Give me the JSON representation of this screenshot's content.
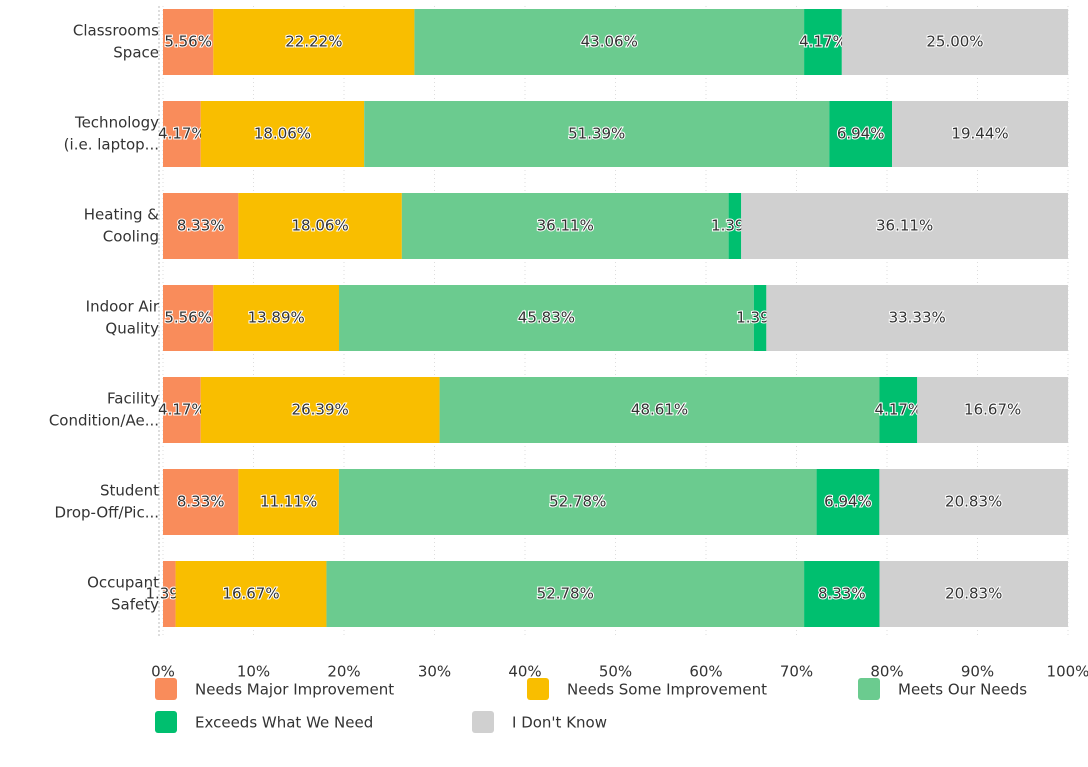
{
  "chart_data": {
    "type": "stacked_bar_horizontal",
    "categories": [
      [
        "Classrooms",
        "Space"
      ],
      [
        "Technology",
        "(i.e. laptop..."
      ],
      [
        "Heating &",
        "Cooling"
      ],
      [
        "Indoor Air",
        "Quality"
      ],
      [
        "Facility",
        "Condition/Ae..."
      ],
      [
        "Student",
        "Drop-Off/Pic..."
      ],
      [
        "Occupant",
        "Safety"
      ]
    ],
    "series": [
      {
        "name": "Needs Major Improvement",
        "color": "#f98c5b",
        "values": [
          5.56,
          4.17,
          8.33,
          5.56,
          4.17,
          8.33,
          1.39
        ],
        "value_labels": [
          "5.56%",
          "4.17%",
          "8.33%",
          "5.56%",
          "4.17%",
          "8.33%",
          "1.39%"
        ]
      },
      {
        "name": "Needs Some Improvement",
        "color": "#f9be00",
        "values": [
          22.22,
          18.06,
          18.06,
          13.89,
          26.39,
          11.11,
          16.67
        ],
        "value_labels": [
          "22.22%",
          "18.06%",
          "18.06%",
          "13.89%",
          "26.39%",
          "11.11%",
          "16.67%"
        ]
      },
      {
        "name": "Meets Our Needs",
        "color": "#6bcb8f",
        "values": [
          43.06,
          51.39,
          36.11,
          45.83,
          48.61,
          52.78,
          52.78
        ],
        "value_labels": [
          "43.06%",
          "51.39%",
          "36.11%",
          "45.83%",
          "48.61%",
          "52.78%",
          "52.78%"
        ]
      },
      {
        "name": "Exceeds What We Need",
        "color": "#00bf6f",
        "values": [
          4.17,
          6.94,
          1.39,
          1.39,
          4.17,
          6.94,
          8.33
        ],
        "value_labels": [
          "4.17%",
          "6.94%",
          "1.39%",
          "1.39%",
          "4.17%",
          "6.94%",
          "8.33%"
        ]
      },
      {
        "name": "I Don't Know",
        "color": "#d0d0d0",
        "values": [
          25.0,
          19.44,
          36.11,
          33.33,
          16.67,
          20.83,
          20.83
        ],
        "value_labels": [
          "25.00%",
          "19.44%",
          "36.11%",
          "33.33%",
          "16.67%",
          "20.83%",
          "20.83%"
        ]
      }
    ],
    "xlim": [
      0,
      100
    ],
    "xticks": [
      {
        "value": 0,
        "label": "0%"
      },
      {
        "value": 10,
        "label": "10%"
      },
      {
        "value": 20,
        "label": "20%"
      },
      {
        "value": 30,
        "label": "30%"
      },
      {
        "value": 40,
        "label": "40%"
      },
      {
        "value": 50,
        "label": "50%"
      },
      {
        "value": 60,
        "label": "60%"
      },
      {
        "value": 70,
        "label": "70%"
      },
      {
        "value": 80,
        "label": "80%"
      },
      {
        "value": 90,
        "label": "90%"
      },
      {
        "value": 100,
        "label": "100%"
      }
    ],
    "grid": true
  }
}
